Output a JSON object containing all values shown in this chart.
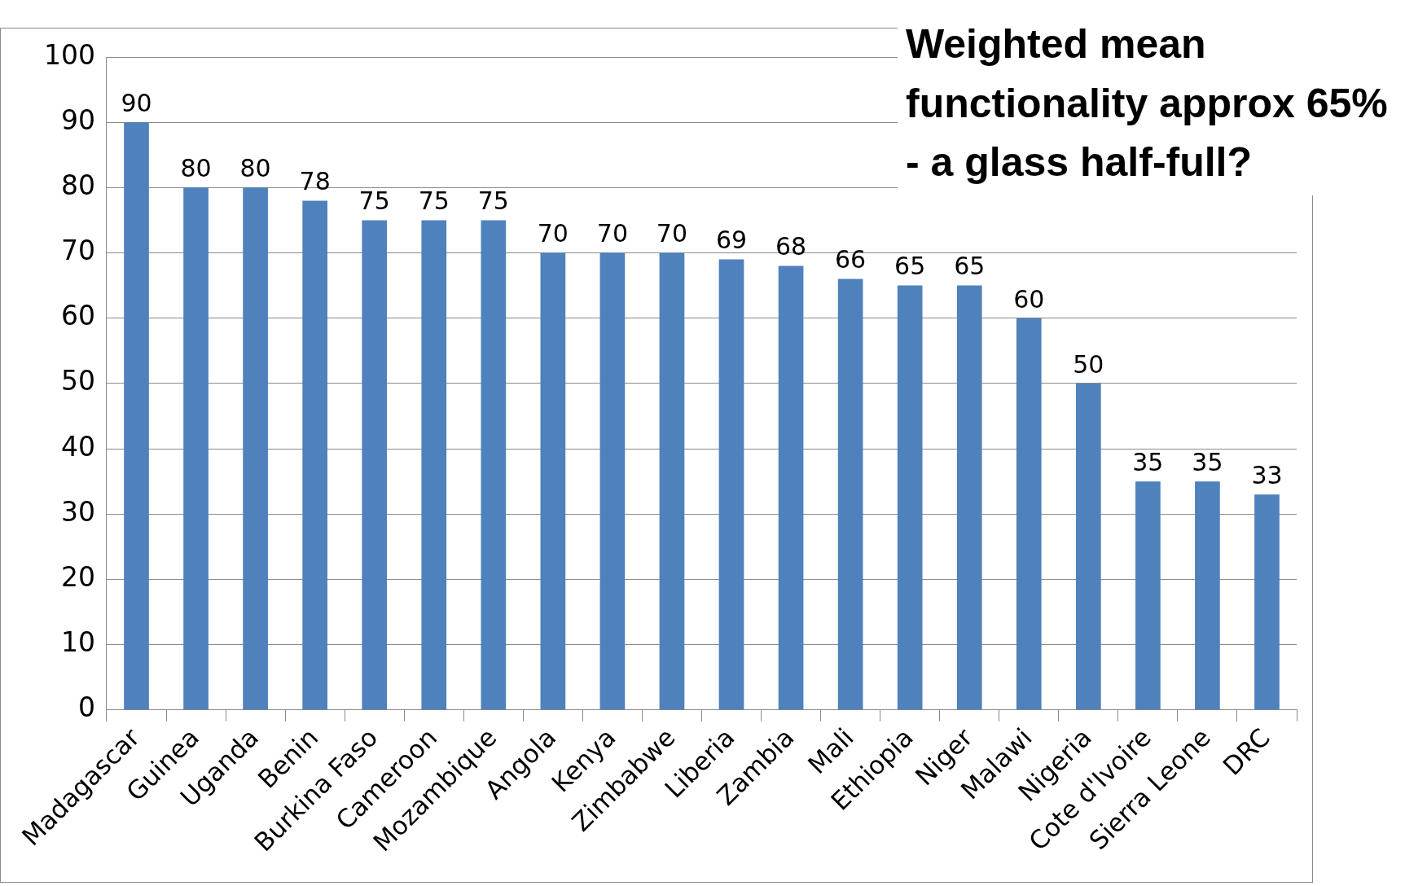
{
  "chart_data": {
    "type": "bar",
    "title": "Weighted mean functionality approx 65% - a glass half-full?",
    "categories": [
      "Madagascar",
      "Guinea",
      "Uganda",
      "Benin",
      "Burkina Faso",
      "Cameroon",
      "Mozambique",
      "Angola",
      "Kenya",
      "Zimbabwe",
      "Liberia",
      "Zambia",
      "Mali",
      "Ethiopia",
      "Niger",
      "Malawi",
      "Nigeria",
      "Cote d'Ivoire",
      "Sierra Leone",
      "DRC"
    ],
    "values": [
      90,
      80,
      80,
      78,
      75,
      75,
      75,
      70,
      70,
      70,
      69,
      68,
      66,
      65,
      65,
      60,
      50,
      35,
      35,
      33
    ],
    "color": "#4f81bd",
    "ylim": [
      0,
      100
    ],
    "yticks": [
      0,
      10,
      20,
      30,
      40,
      50,
      60,
      70,
      80,
      90,
      100
    ],
    "grid": "y",
    "data_labels": true,
    "legend": false
  }
}
